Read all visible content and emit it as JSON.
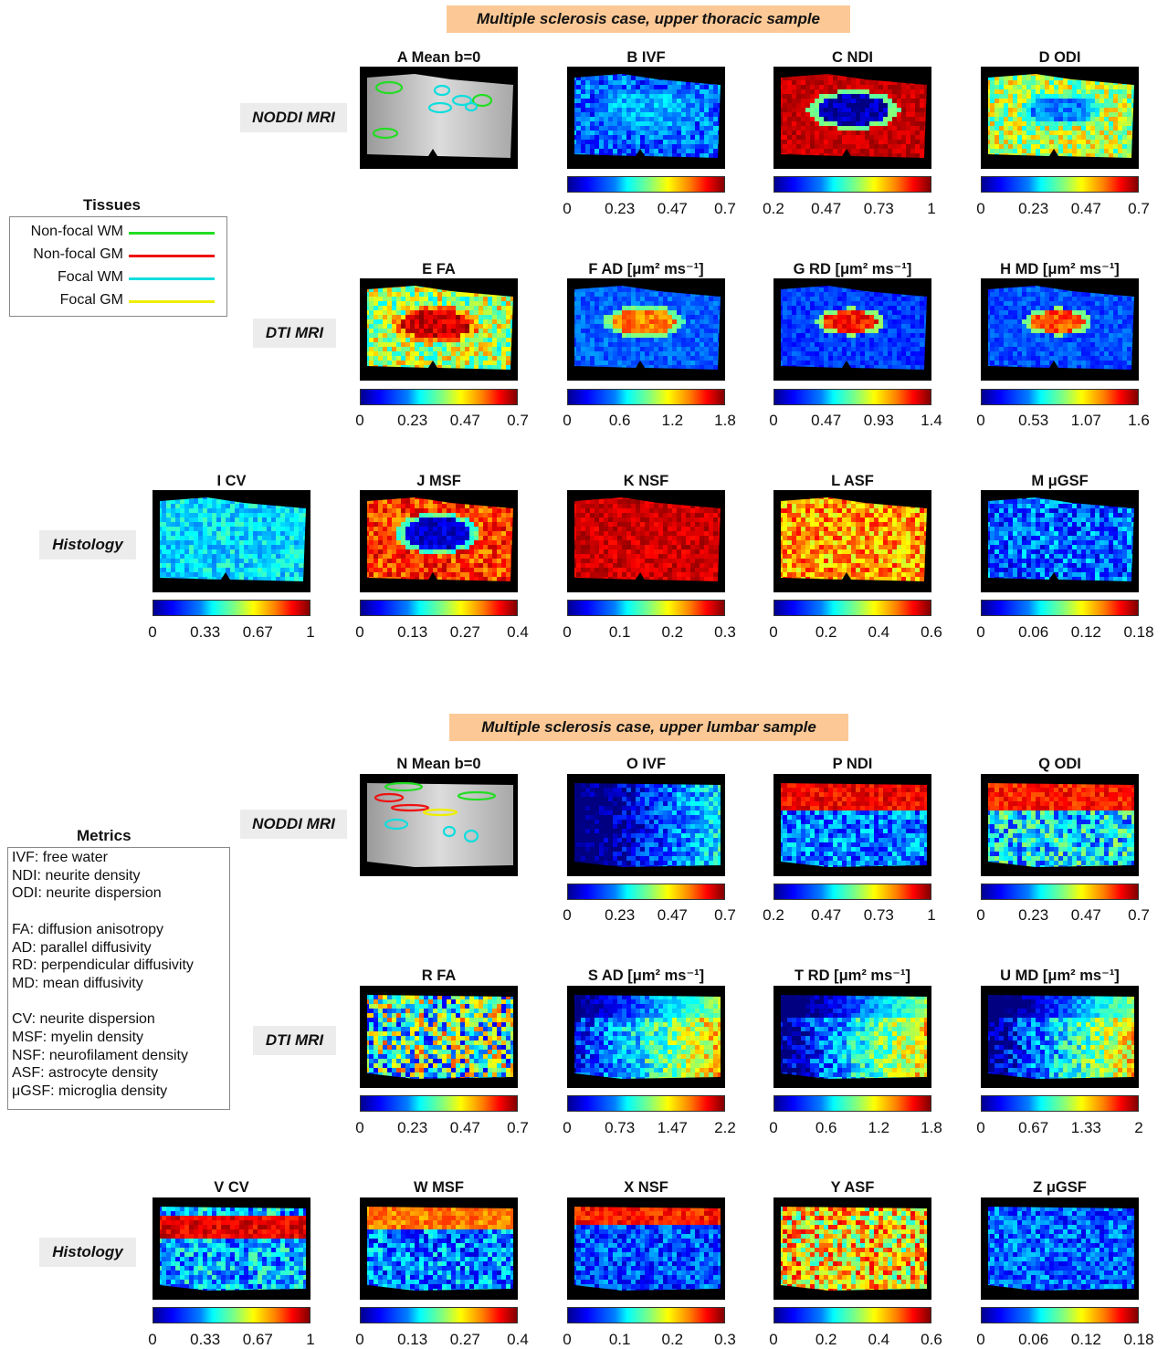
{
  "sections": [
    {
      "banner": "Multiple sclerosis case, upper thoracic sample",
      "row_labels": {
        "nodi": "NODDI MRI",
        "dti": "DTI MRI",
        "hist": "Histology"
      },
      "panels": [
        {
          "title": "A  Mean b=0",
          "ticks": []
        },
        {
          "title": "B  IVF",
          "ticks": [
            "0",
            "0.23",
            "0.47",
            "0.7"
          ]
        },
        {
          "title": "C  NDI",
          "ticks": [
            "0.2",
            "0.47",
            "0.73",
            "1"
          ]
        },
        {
          "title": "D  ODI",
          "ticks": [
            "0",
            "0.23",
            "0.47",
            "0.7"
          ]
        },
        {
          "title": "E  FA",
          "ticks": [
            "0",
            "0.23",
            "0.47",
            "0.7"
          ]
        },
        {
          "title": "F  AD  [μm² ms⁻¹]",
          "ticks": [
            "0",
            "0.6",
            "1.2",
            "1.8"
          ]
        },
        {
          "title": "G  RD  [μm² ms⁻¹]",
          "ticks": [
            "0",
            "0.47",
            "0.93",
            "1.4"
          ]
        },
        {
          "title": "H  MD  [μm² ms⁻¹]",
          "ticks": [
            "0",
            "0.53",
            "1.07",
            "1.6"
          ]
        },
        {
          "title": "I  CV",
          "ticks": [
            "0",
            "0.33",
            "0.67",
            "1"
          ]
        },
        {
          "title": "J  MSF",
          "ticks": [
            "0",
            "0.13",
            "0.27",
            "0.4"
          ]
        },
        {
          "title": "K  NSF",
          "ticks": [
            "0",
            "0.1",
            "0.2",
            "0.3"
          ]
        },
        {
          "title": "L  ASF",
          "ticks": [
            "0",
            "0.2",
            "0.4",
            "0.6"
          ]
        },
        {
          "title": "M  μGSF",
          "ticks": [
            "0",
            "0.06",
            "0.12",
            "0.18"
          ]
        }
      ]
    },
    {
      "banner": "Multiple sclerosis case, upper lumbar sample",
      "row_labels": {
        "nodi": "NODDI MRI",
        "dti": "DTI MRI",
        "hist": "Histology"
      },
      "panels": [
        {
          "title": "N  Mean b=0",
          "ticks": []
        },
        {
          "title": "O  IVF",
          "ticks": [
            "0",
            "0.23",
            "0.47",
            "0.7"
          ]
        },
        {
          "title": "P  NDI",
          "ticks": [
            "0.2",
            "0.47",
            "0.73",
            "1"
          ]
        },
        {
          "title": "Q  ODI",
          "ticks": [
            "0",
            "0.23",
            "0.47",
            "0.7"
          ]
        },
        {
          "title": "R  FA",
          "ticks": [
            "0",
            "0.23",
            "0.47",
            "0.7"
          ]
        },
        {
          "title": "S  AD  [μm² ms⁻¹]",
          "ticks": [
            "0",
            "0.73",
            "1.47",
            "2.2"
          ]
        },
        {
          "title": "T  RD  [μm² ms⁻¹]",
          "ticks": [
            "0",
            "0.6",
            "1.2",
            "1.8"
          ]
        },
        {
          "title": "U  MD  [μm² ms⁻¹]",
          "ticks": [
            "0",
            "0.67",
            "1.33",
            "2"
          ]
        },
        {
          "title": "V  CV",
          "ticks": [
            "0",
            "0.33",
            "0.67",
            "1"
          ]
        },
        {
          "title": "W  MSF",
          "ticks": [
            "0",
            "0.13",
            "0.27",
            "0.4"
          ]
        },
        {
          "title": "X  NSF",
          "ticks": [
            "0",
            "0.1",
            "0.2",
            "0.3"
          ]
        },
        {
          "title": "Y  ASF",
          "ticks": [
            "0",
            "0.2",
            "0.4",
            "0.6"
          ]
        },
        {
          "title": "Z  μGSF",
          "ticks": [
            "0",
            "0.06",
            "0.12",
            "0.18"
          ]
        }
      ]
    }
  ],
  "tissues": {
    "title": "Tissues",
    "items": [
      {
        "label": "Non-focal WM",
        "color": "#22dd22"
      },
      {
        "label": "Non-focal GM",
        "color": "#ee1111"
      },
      {
        "label": "Focal WM",
        "color": "#11dddd"
      },
      {
        "label": "Focal GM",
        "color": "#eeee00"
      }
    ]
  },
  "metrics": {
    "title": "Metrics",
    "lines": [
      "IVF: free water",
      "NDI: neurite density",
      "ODI: neurite dispersion",
      "",
      "FA: diffusion anisotropy",
      "AD: parallel diffusivity",
      "RD: perpendicular diffusivity",
      "MD: mean diffusivity",
      "",
      "CV: neurite dispersion",
      "MSF: myelin density",
      "NSF: neurofilament density",
      "ASF: astrocyte density",
      "μGSF: microglia density"
    ]
  }
}
